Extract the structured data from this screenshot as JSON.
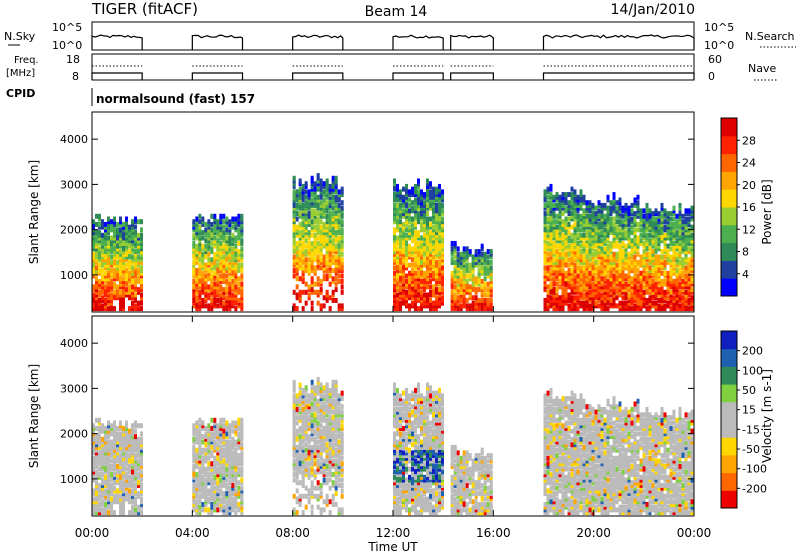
{
  "header": {
    "radar": "TIGER (fitACF)",
    "beam": "Beam 14",
    "date": "14/Jan/2010"
  },
  "panels": {
    "nsky": {
      "label": "N.Sky",
      "left_ticks": [
        "10^5",
        "10^0"
      ],
      "right_ticks": [
        "10^5",
        "10^0"
      ],
      "right_label": "N.Search"
    },
    "freq": {
      "label_line1": "Freq.",
      "label_line2": "[MHz]",
      "left_ticks": [
        "18",
        "8"
      ],
      "right_ticks": [
        "60",
        "0"
      ],
      "right_label": "Nave"
    },
    "cpid": {
      "label": "CPID",
      "value": "normalsound (fast) 157"
    }
  },
  "colors": {
    "power_scale": [
      "#0000ff",
      "#2040a0",
      "#2e8b57",
      "#4caf50",
      "#9acd32",
      "#ffd700",
      "#ffa500",
      "#ff6600",
      "#ff2200",
      "#dd0000"
    ],
    "velocity_scale": [
      "#ee0000",
      "#ff6600",
      "#ffa500",
      "#ffd700",
      "#bbbbbb",
      "#bbbbbb",
      "#80d040",
      "#2e8b57",
      "#2060b0",
      "#1020c0"
    ]
  },
  "chart_data": [
    {
      "type": "heatmap",
      "name": "power",
      "ylabel": "Slant Range [km]",
      "yticks": [
        "1000",
        "2000",
        "3000",
        "4000"
      ],
      "yvals": [
        1000,
        2000,
        3000,
        4000
      ],
      "ylim": [
        180,
        4600
      ],
      "xlim": [
        0,
        24
      ],
      "colorbar_label": "Power [dB]",
      "colorbar_ticks": [
        "4",
        "8",
        "12",
        "16",
        "20",
        "24",
        "28"
      ],
      "colorbar_range": [
        0,
        32
      ],
      "segments": [
        [
          0,
          2.0
        ],
        [
          4.0,
          6.0
        ],
        [
          8.0,
          10.0
        ],
        [
          12.0,
          14.0
        ],
        [
          14.3,
          16.0
        ],
        [
          18.0,
          24.0
        ]
      ]
    },
    {
      "type": "heatmap",
      "name": "velocity",
      "ylabel": "Slant Range [km]",
      "yticks": [
        "1000",
        "2000",
        "3000",
        "4000"
      ],
      "yvals": [
        1000,
        2000,
        3000,
        4000
      ],
      "ylim": [
        180,
        4600
      ],
      "xlim": [
        0,
        24
      ],
      "xlabel": "Time UT",
      "xticks": [
        "00:00",
        "04:00",
        "08:00",
        "12:00",
        "16:00",
        "20:00",
        "00:00"
      ],
      "xvals": [
        0,
        4,
        8,
        12,
        16,
        20,
        24
      ],
      "colorbar_label": "Velocity [m s-1]",
      "colorbar_ticks": [
        "-200",
        "-100",
        "-50",
        "-15",
        "15",
        "50",
        "100",
        "200"
      ],
      "segments": [
        [
          0,
          2.0
        ],
        [
          4.0,
          6.0
        ],
        [
          8.0,
          10.0
        ],
        [
          12.0,
          14.0
        ],
        [
          14.3,
          16.0
        ],
        [
          18.0,
          24.0
        ]
      ]
    }
  ]
}
